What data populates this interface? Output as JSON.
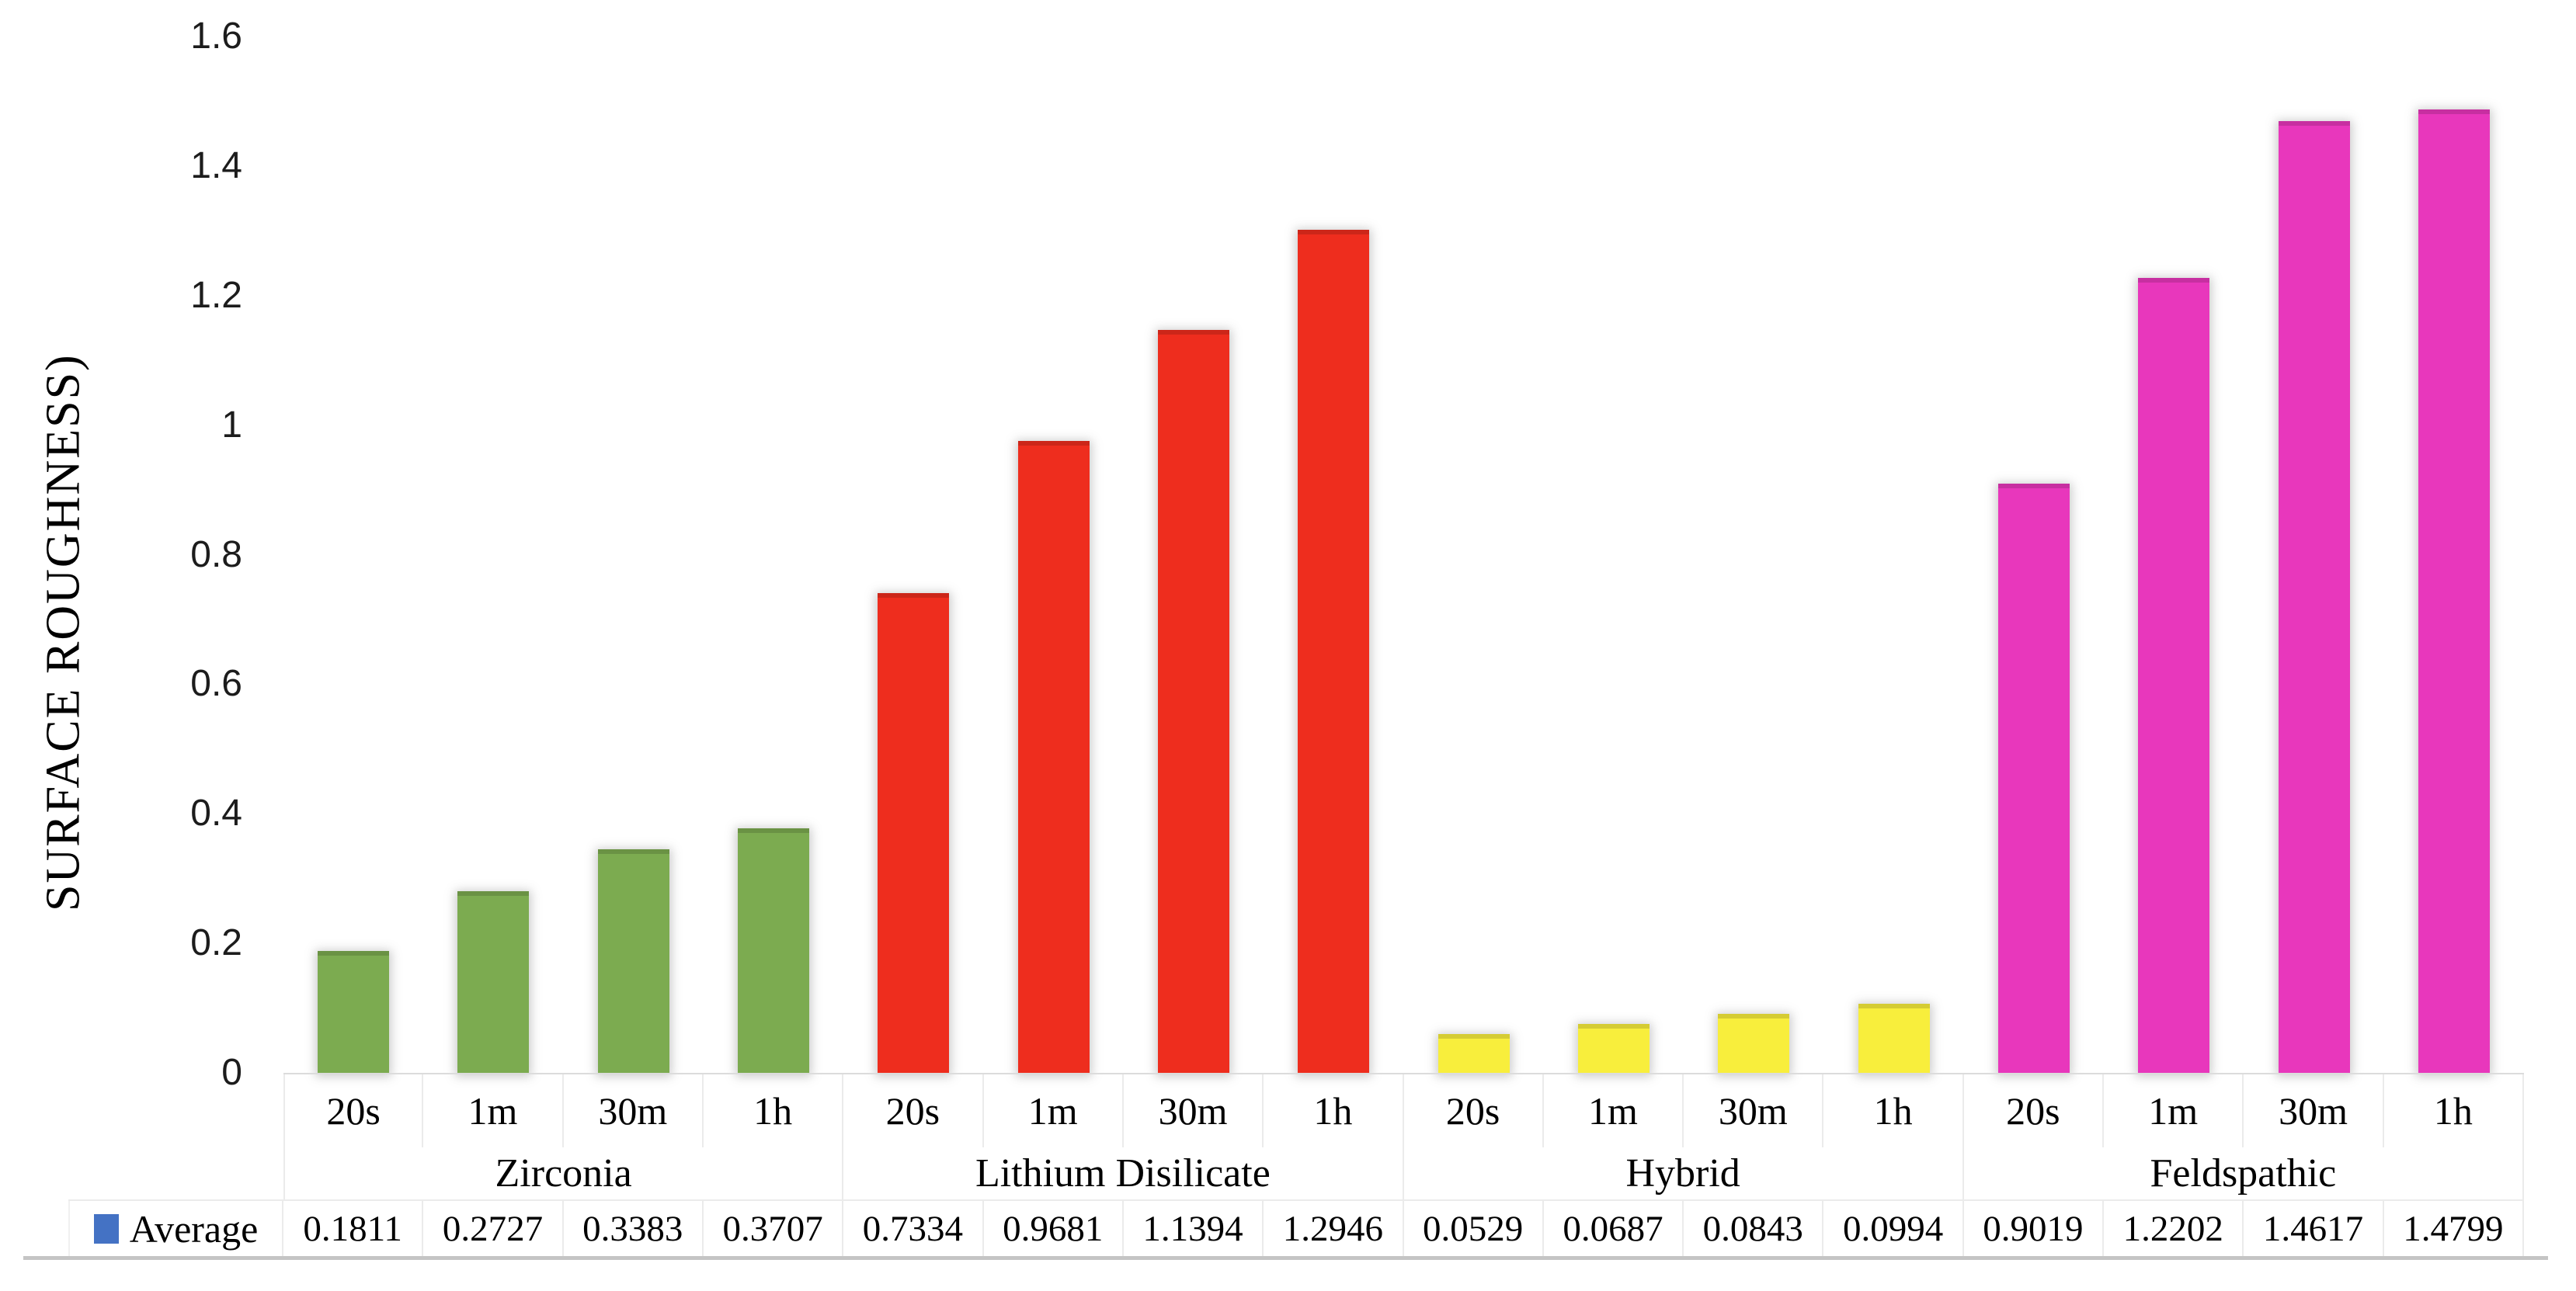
{
  "chart_data": {
    "type": "bar",
    "title": "",
    "xlabel": "",
    "ylabel": "SURFACE ROUGHNESS)",
    "ylim": [
      0,
      1.6
    ],
    "yticks": [
      0,
      0.2,
      0.4,
      0.6,
      0.8,
      1,
      1.2,
      1.4,
      1.6
    ],
    "ytick_labels": [
      "0",
      "0.2",
      "0.4",
      "0.6",
      "0.8",
      "1",
      "1.2",
      "1.4",
      "1.6"
    ],
    "grid": false,
    "legend": {
      "label": "Average",
      "marker_color": "#4472C4",
      "position": "bottom-left"
    },
    "categories_per_group": [
      "20s",
      "1m",
      "30m",
      "1h"
    ],
    "groups": [
      {
        "name": "Zirconia",
        "color": "#7CAB50",
        "values": [
          0.1811,
          0.2727,
          0.3383,
          0.3707
        ],
        "value_labels": [
          "0.1811",
          "0.2727",
          "0.3383",
          "0.3707"
        ]
      },
      {
        "name": "Lithium Disilicate",
        "color": "#EE2D1E",
        "values": [
          0.7334,
          0.9681,
          1.1394,
          1.2946
        ],
        "value_labels": [
          "0.7334",
          "0.9681",
          "1.1394",
          "1.2946"
        ]
      },
      {
        "name": "Hybrid",
        "color": "#F8EE3C",
        "values": [
          0.0529,
          0.0687,
          0.0843,
          0.0994
        ],
        "value_labels": [
          "0.0529",
          "0.0687",
          "0.0843",
          "0.0994"
        ]
      },
      {
        "name": "Feldspathic",
        "color": "#E837BC",
        "values": [
          0.9019,
          1.2202,
          1.4617,
          1.4799
        ],
        "value_labels": [
          "0.9019",
          "1.2202",
          "1.4617",
          "1.4799"
        ]
      }
    ]
  }
}
